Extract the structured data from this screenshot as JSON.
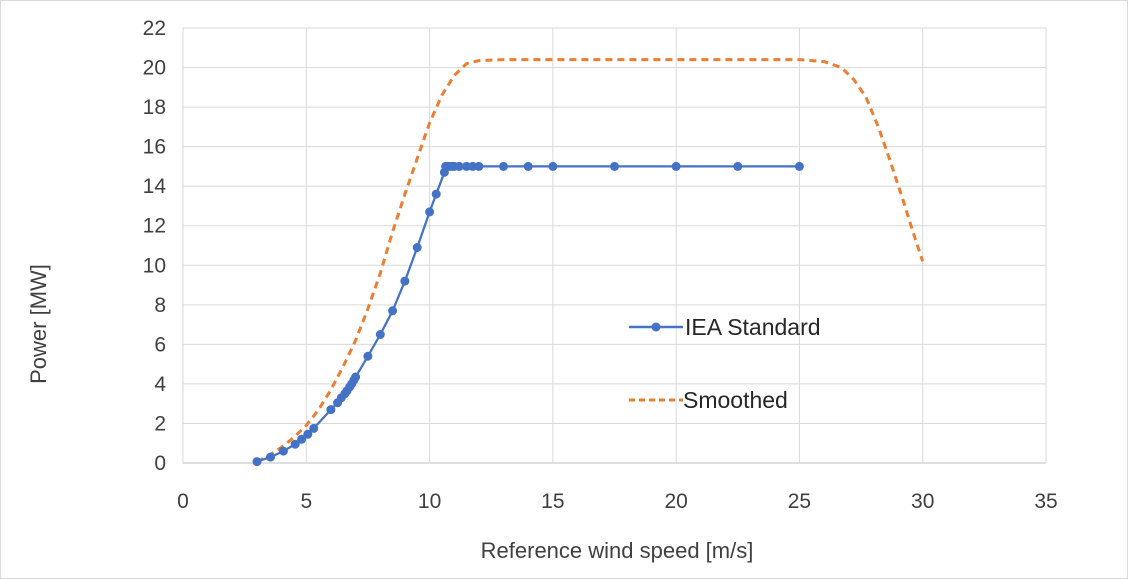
{
  "chart_data": {
    "type": "line",
    "title": "",
    "xlabel": "Reference wind speed [m/s]",
    "ylabel": "Power [MW]",
    "xlim": [
      0,
      35
    ],
    "ylim": [
      0,
      22
    ],
    "x_ticks": [
      "0",
      "5",
      "10",
      "15",
      "20",
      "25",
      "30",
      "35"
    ],
    "y_ticks": [
      "0",
      "2",
      "4",
      "6",
      "8",
      "10",
      "12",
      "14",
      "16",
      "18",
      "20",
      "22"
    ],
    "grid": true,
    "legend": "center-right",
    "series": [
      {
        "name": "IEA Standard",
        "color": "#4472c4",
        "style": "solid",
        "markers": true,
        "points": [
          [
            3.0,
            0.07
          ],
          [
            3.55,
            0.3
          ],
          [
            4.07,
            0.6
          ],
          [
            4.55,
            0.95
          ],
          [
            4.81,
            1.2
          ],
          [
            5.06,
            1.45
          ],
          [
            5.3,
            1.75
          ],
          [
            6.0,
            2.7
          ],
          [
            6.27,
            3.05
          ],
          [
            6.42,
            3.3
          ],
          [
            6.56,
            3.5
          ],
          [
            6.65,
            3.65
          ],
          [
            6.76,
            3.85
          ],
          [
            6.84,
            4.0
          ],
          [
            6.93,
            4.2
          ],
          [
            7.0,
            4.35
          ],
          [
            7.5,
            5.4
          ],
          [
            8.0,
            6.5
          ],
          [
            8.5,
            7.7
          ],
          [
            9.0,
            9.2
          ],
          [
            9.5,
            10.9
          ],
          [
            10.0,
            12.7
          ],
          [
            10.27,
            13.6
          ],
          [
            10.6,
            14.7
          ],
          [
            10.65,
            15.0
          ],
          [
            10.74,
            15.0
          ],
          [
            10.8,
            15.0
          ],
          [
            10.9,
            15.0
          ],
          [
            11.0,
            15.0
          ],
          [
            11.2,
            15.0
          ],
          [
            11.5,
            15.0
          ],
          [
            11.75,
            15.0
          ],
          [
            12.0,
            15.0
          ],
          [
            13.0,
            15.0
          ],
          [
            14.0,
            15.0
          ],
          [
            15.0,
            15.0
          ],
          [
            17.5,
            15.0
          ],
          [
            20.0,
            15.0
          ],
          [
            22.5,
            15.0
          ],
          [
            25.0,
            15.0
          ]
        ]
      },
      {
        "name": "Smoothed",
        "color": "#ed7d31",
        "style": "dashed",
        "markers": false,
        "points": [
          [
            3.0,
            0.05
          ],
          [
            3.5,
            0.4
          ],
          [
            4.0,
            0.8
          ],
          [
            4.5,
            1.3
          ],
          [
            5.0,
            1.9
          ],
          [
            5.5,
            2.7
          ],
          [
            6.0,
            3.7
          ],
          [
            6.5,
            4.9
          ],
          [
            7.0,
            6.2
          ],
          [
            7.5,
            7.8
          ],
          [
            8.0,
            9.6
          ],
          [
            8.5,
            11.7
          ],
          [
            9.0,
            13.6
          ],
          [
            9.5,
            15.4
          ],
          [
            10.0,
            17.2
          ],
          [
            10.5,
            18.6
          ],
          [
            11.0,
            19.6
          ],
          [
            11.5,
            20.2
          ],
          [
            12.0,
            20.35
          ],
          [
            13.0,
            20.4
          ],
          [
            15.0,
            20.4
          ],
          [
            20.0,
            20.4
          ],
          [
            25.0,
            20.4
          ],
          [
            26.0,
            20.3
          ],
          [
            26.7,
            20.0
          ],
          [
            27.2,
            19.4
          ],
          [
            27.7,
            18.5
          ],
          [
            28.2,
            17.0
          ],
          [
            28.7,
            15.2
          ],
          [
            29.2,
            13.3
          ],
          [
            29.6,
            11.7
          ],
          [
            30.0,
            10.2
          ]
        ]
      }
    ]
  }
}
